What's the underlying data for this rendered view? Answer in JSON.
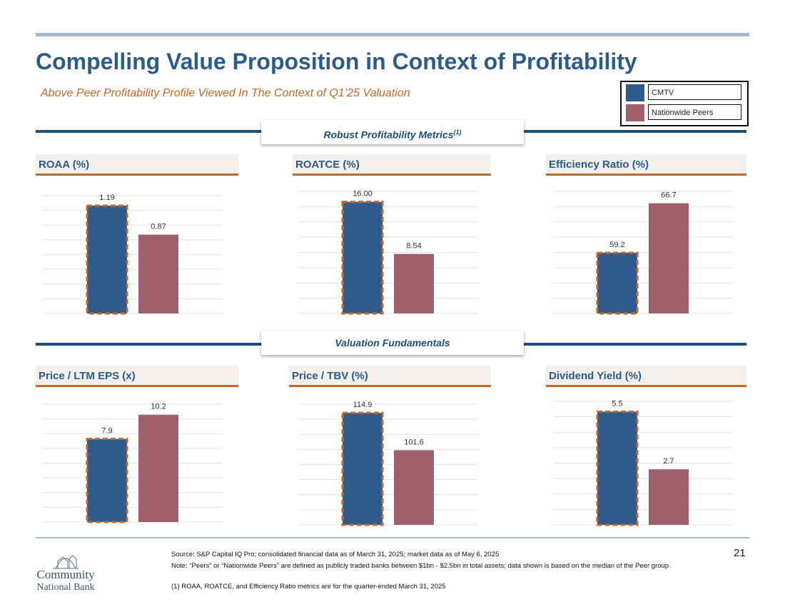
{
  "header": {
    "title": "Compelling Value Proposition in Context of Profitability",
    "subtitle": "Above Peer Profitability Profile Viewed In The Context of Q1’25 Valuation"
  },
  "legend": {
    "items": [
      {
        "label": "CMTV",
        "color": "#2e5a8c"
      },
      {
        "label": "Nationwide Peers",
        "color": "#a0606b"
      }
    ]
  },
  "bands": {
    "top": {
      "label": "Robust Profitability Metrics",
      "note": "(1)"
    },
    "bottom": {
      "label": "Valuation Fundamentals"
    }
  },
  "colors": {
    "cmtv": "#2e5a8c",
    "peers": "#a0606b",
    "accent": "#c0692a",
    "title": "#2b5c8a"
  },
  "chart_data": [
    {
      "type": "bar",
      "title": "ROAA (%)",
      "categories": [
        "CMTV",
        "Nationwide Peers"
      ],
      "values": [
        1.19,
        0.87
      ],
      "labels": [
        "1.19",
        "0.87"
      ],
      "ylim": [
        0,
        1.3
      ]
    },
    {
      "type": "bar",
      "title": "ROATCE (%)",
      "categories": [
        "CMTV",
        "Nationwide Peers"
      ],
      "values": [
        16.0,
        8.54
      ],
      "labels": [
        "16.00",
        "8.54"
      ],
      "ylim": [
        0,
        17.5
      ]
    },
    {
      "type": "bar",
      "title": "Efficiency Ratio (%)",
      "categories": [
        "CMTV",
        "Nationwide Peers"
      ],
      "values": [
        59.2,
        66.7
      ],
      "labels": [
        "59.2",
        "66.7"
      ],
      "ylim": [
        50,
        68.5
      ]
    },
    {
      "type": "bar",
      "title": "Price / LTM EPS (x)",
      "categories": [
        "CMTV",
        "Nationwide Peers"
      ],
      "values": [
        7.9,
        10.2
      ],
      "labels": [
        "7.9",
        "10.2"
      ],
      "ylim": [
        0,
        11.2
      ]
    },
    {
      "type": "bar",
      "title": "Price / TBV (%)",
      "categories": [
        "CMTV",
        "Nationwide Peers"
      ],
      "values": [
        114.9,
        101.6
      ],
      "labels": [
        "114.9",
        "101.6"
      ],
      "ylim": [
        75,
        118
      ]
    },
    {
      "type": "bar",
      "title": "Dividend Yield (%)",
      "categories": [
        "CMTV",
        "Nationwide Peers"
      ],
      "values": [
        5.5,
        2.7
      ],
      "labels": [
        "5.5",
        "2.7"
      ],
      "ylim": [
        0,
        6
      ]
    }
  ],
  "footer": {
    "logo_text": [
      "Community",
      "National Bank"
    ],
    "source": "Source: S&P Capital IQ Pro; consolidated financial data as of March 31, 2025; market data as of May 6, 2025",
    "note": "Note: “Peers” or “Nationwide Peers” are defined as publicly traded banks between $1bn - $2.5bn in total assets; data shown is based on the median of the Peer group",
    "footnote1": "(1) ROAA, ROATCE, and Efficiency Ratio metrics are for the quarter-ended March 31, 2025",
    "page_number": "21"
  }
}
